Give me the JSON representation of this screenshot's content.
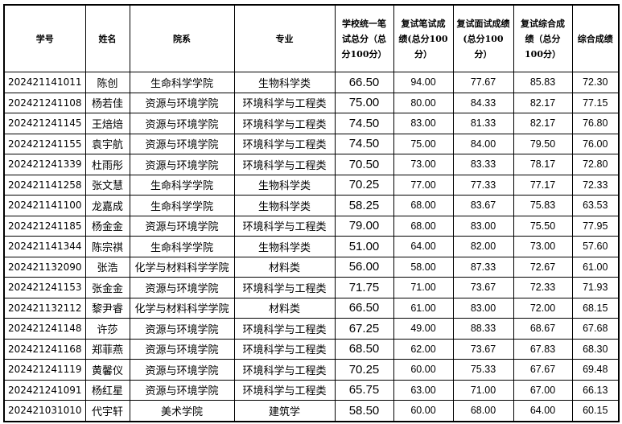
{
  "table": {
    "headers": [
      "学号",
      "姓名",
      "院系",
      "专业",
      "学校统一笔试总分（总分100分）",
      "复试笔试成绩(总分100分）",
      "复试面试成绩(总分100分）",
      "复试综合成绩（总分100分）",
      "综合成绩"
    ],
    "rows": [
      [
        "202421141011",
        "陈创",
        "生命科学学院",
        "生物科学类",
        "66.50",
        "94.00",
        "77.67",
        "85.83",
        "72.30"
      ],
      [
        "202421241108",
        "杨若佳",
        "资源与环境学院",
        "环境科学与工程类",
        "75.00",
        "80.00",
        "84.33",
        "82.17",
        "77.15"
      ],
      [
        "202421241145",
        "王焙焙",
        "资源与环境学院",
        "环境科学与工程类",
        "74.50",
        "83.00",
        "81.33",
        "82.17",
        "76.80"
      ],
      [
        "202421241155",
        "袁宇航",
        "资源与环境学院",
        "环境科学与工程类",
        "74.50",
        "75.00",
        "84.00",
        "79.50",
        "76.00"
      ],
      [
        "202421241339",
        "杜雨彤",
        "资源与环境学院",
        "环境科学与工程类",
        "70.50",
        "73.00",
        "83.33",
        "78.17",
        "72.80"
      ],
      [
        "202421141258",
        "张文慧",
        "生命科学学院",
        "生物科学类",
        "70.25",
        "77.00",
        "77.33",
        "77.17",
        "72.33"
      ],
      [
        "202421141100",
        "龙嘉成",
        "生命科学学院",
        "生物科学类",
        "58.25",
        "68.00",
        "83.67",
        "75.83",
        "63.53"
      ],
      [
        "202421241185",
        "杨金金",
        "资源与环境学院",
        "环境科学与工程类",
        "79.00",
        "68.00",
        "83.00",
        "75.50",
        "77.95"
      ],
      [
        "202421141344",
        "陈宗祺",
        "生命科学学院",
        "生物科学类",
        "51.00",
        "64.00",
        "82.00",
        "73.00",
        "57.60"
      ],
      [
        "202421132090",
        "张浩",
        "化学与材料科学学院",
        "材料类",
        "56.00",
        "58.00",
        "87.33",
        "72.67",
        "61.00"
      ],
      [
        "202421241153",
        "张金金",
        "资源与环境学院",
        "环境科学与工程类",
        "71.75",
        "71.00",
        "73.67",
        "72.33",
        "71.93"
      ],
      [
        "202421132112",
        "黎尹睿",
        "化学与材料科学学院",
        "材料类",
        "66.50",
        "61.00",
        "83.00",
        "72.00",
        "68.15"
      ],
      [
        "202421241148",
        "许莎",
        "资源与环境学院",
        "环境科学与工程类",
        "67.25",
        "49.00",
        "88.33",
        "68.67",
        "67.68"
      ],
      [
        "202421241168",
        "郑菲燕",
        "资源与环境学院",
        "环境科学与工程类",
        "68.50",
        "62.00",
        "73.67",
        "67.83",
        "68.30"
      ],
      [
        "202421241119",
        "黄馨仪",
        "资源与环境学院",
        "环境科学与工程类",
        "70.25",
        "60.00",
        "75.33",
        "67.67",
        "69.48"
      ],
      [
        "202421241091",
        "杨红星",
        "资源与环境学院",
        "环境科学与工程类",
        "65.75",
        "63.00",
        "71.00",
        "67.00",
        "66.13"
      ],
      [
        "202421031010",
        "代宇轩",
        "美术学院",
        "建筑学",
        "58.50",
        "60.00",
        "68.00",
        "64.00",
        "60.15"
      ]
    ]
  }
}
